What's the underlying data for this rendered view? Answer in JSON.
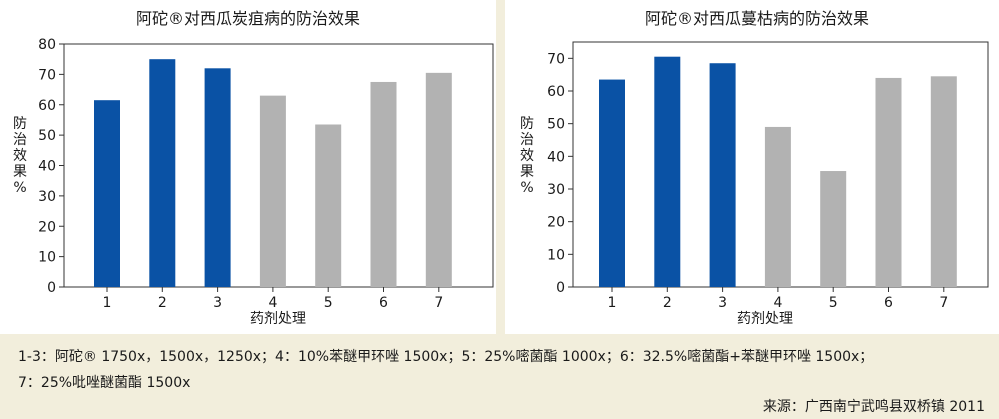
{
  "colors": {
    "background": "#f2eedc",
    "panel": "#ffffff",
    "bar_blue": "#0a52a5",
    "bar_gray": "#b2b2b2",
    "axis": "#333333"
  },
  "chart_data": [
    {
      "type": "bar",
      "title": "阿砣®对西瓜炭疽病的防治效果",
      "xlabel": "药剂处理",
      "ylabel": "防治效果%",
      "categories": [
        "1",
        "2",
        "3",
        "4",
        "5",
        "6",
        "7"
      ],
      "values": [
        61.5,
        75,
        72,
        63,
        53.5,
        67.5,
        70.5
      ],
      "bar_colors": [
        "#0a52a5",
        "#0a52a5",
        "#0a52a5",
        "#b2b2b2",
        "#b2b2b2",
        "#b2b2b2",
        "#b2b2b2"
      ],
      "ylim": [
        0,
        80
      ],
      "yticks": [
        0,
        10,
        20,
        30,
        40,
        50,
        60,
        70,
        80
      ],
      "grid": false
    },
    {
      "type": "bar",
      "title": "阿砣®对西瓜蔓枯病的防治效果",
      "xlabel": "药剂处理",
      "ylabel": "防治效果%",
      "categories": [
        "1",
        "2",
        "3",
        "4",
        "5",
        "6",
        "7"
      ],
      "values": [
        63.5,
        70.5,
        68.5,
        49,
        35.5,
        64,
        64.5
      ],
      "bar_colors": [
        "#0a52a5",
        "#0a52a5",
        "#0a52a5",
        "#b2b2b2",
        "#b2b2b2",
        "#b2b2b2",
        "#b2b2b2"
      ],
      "ylim": [
        0,
        75
      ],
      "yticks": [
        0,
        10,
        20,
        30,
        40,
        50,
        60,
        70
      ],
      "grid": false
    }
  ],
  "footnote": {
    "line1": "1-3：阿砣® 1750x，1500x，1250x；4：10%苯醚甲环唑 1500x；5：25%嘧菌酯 1000x；6：32.5%嘧菌酯+苯醚甲环唑 1500x；",
    "line2": "7：25%吡唑醚菌酯 1500x"
  },
  "source": "来源：广西南宁武鸣县双桥镇 2011"
}
